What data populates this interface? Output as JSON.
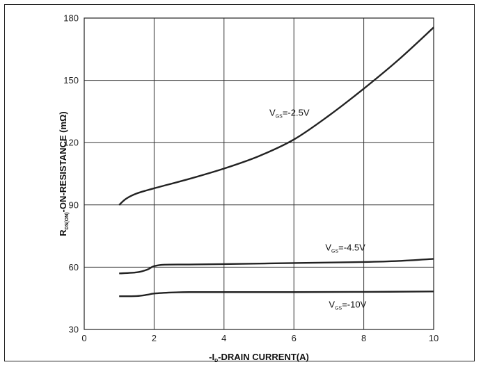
{
  "chart_data": {
    "type": "line",
    "xlabel": {
      "pre": "-I",
      "sub": "D",
      "post": "-DRAIN CURRENT(A)"
    },
    "ylabel": {
      "pre": "R",
      "sub": "DS(ON)",
      "post": "-ON-RESISTANCE (mΩ)"
    },
    "xlim": [
      0,
      10
    ],
    "ylim": [
      30,
      180
    ],
    "xticks": [
      0,
      2,
      4,
      6,
      8,
      10
    ],
    "yticks": [
      30,
      60,
      90,
      120,
      150,
      180
    ],
    "grid": true,
    "series": [
      {
        "name": "V_GS=-2.5V",
        "label": {
          "pre": "V",
          "sub": "GS",
          "post": "=-2.5V"
        },
        "x": [
          1.0,
          1.2,
          1.5,
          2.0,
          3.0,
          4.0,
          5.0,
          6.0,
          7.0,
          8.0,
          9.0,
          10.0
        ],
        "y": [
          90,
          93,
          95.5,
          98,
          102.5,
          107.5,
          113.5,
          121.5,
          133,
          146,
          160,
          175.5
        ]
      },
      {
        "name": "V_GS=-4.5V",
        "label": {
          "pre": "V",
          "sub": "GS",
          "post": "=-4.5V"
        },
        "x": [
          1.0,
          1.5,
          1.8,
          2.0,
          2.3,
          3.0,
          4.0,
          6.0,
          8.0,
          9.0,
          10.0
        ],
        "y": [
          57,
          57.5,
          58.8,
          60.5,
          61.2,
          61.3,
          61.5,
          62.0,
          62.5,
          63.0,
          64.0
        ],
        "label_x": 6.9,
        "label_y": 68
      },
      {
        "name": "V_GS=-10V",
        "label": {
          "pre": "V",
          "sub": "GS",
          "post": "=-10V"
        },
        "x": [
          1.0,
          1.5,
          1.8,
          2.0,
          2.5,
          3.0,
          4.0,
          6.0,
          8.0,
          10.0
        ],
        "y": [
          46,
          46.1,
          46.7,
          47.3,
          47.8,
          48.0,
          48.0,
          48.0,
          48.1,
          48.3
        ]
      }
    ]
  }
}
